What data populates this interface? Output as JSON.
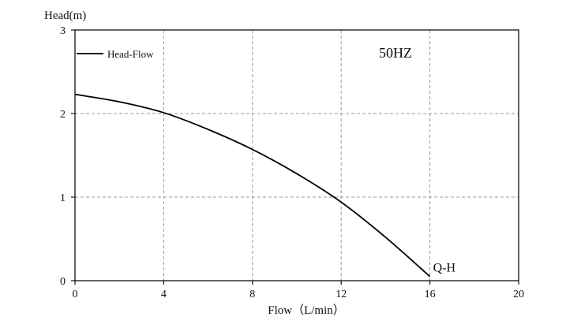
{
  "chart_data": {
    "type": "line",
    "title": "",
    "xlabel": "Flow（L/min）",
    "ylabel": "Head(m)",
    "xlim": [
      0,
      20
    ],
    "ylim": [
      0,
      3
    ],
    "xticks": [
      0,
      4,
      8,
      12,
      16,
      20
    ],
    "yticks": [
      0,
      1,
      2,
      3
    ],
    "grid": true,
    "grid_style": "dashed",
    "legend_position": "top-left",
    "series": [
      {
        "name": "Head-Flow",
        "color": "#000000",
        "x": [
          0,
          2,
          4,
          6,
          8,
          10,
          12,
          14,
          16
        ],
        "y": [
          2.23,
          2.14,
          2.01,
          1.81,
          1.57,
          1.28,
          0.94,
          0.52,
          0.05
        ]
      }
    ],
    "annotations": {
      "frequency": "50HZ",
      "curve_label": "Q-H"
    }
  }
}
